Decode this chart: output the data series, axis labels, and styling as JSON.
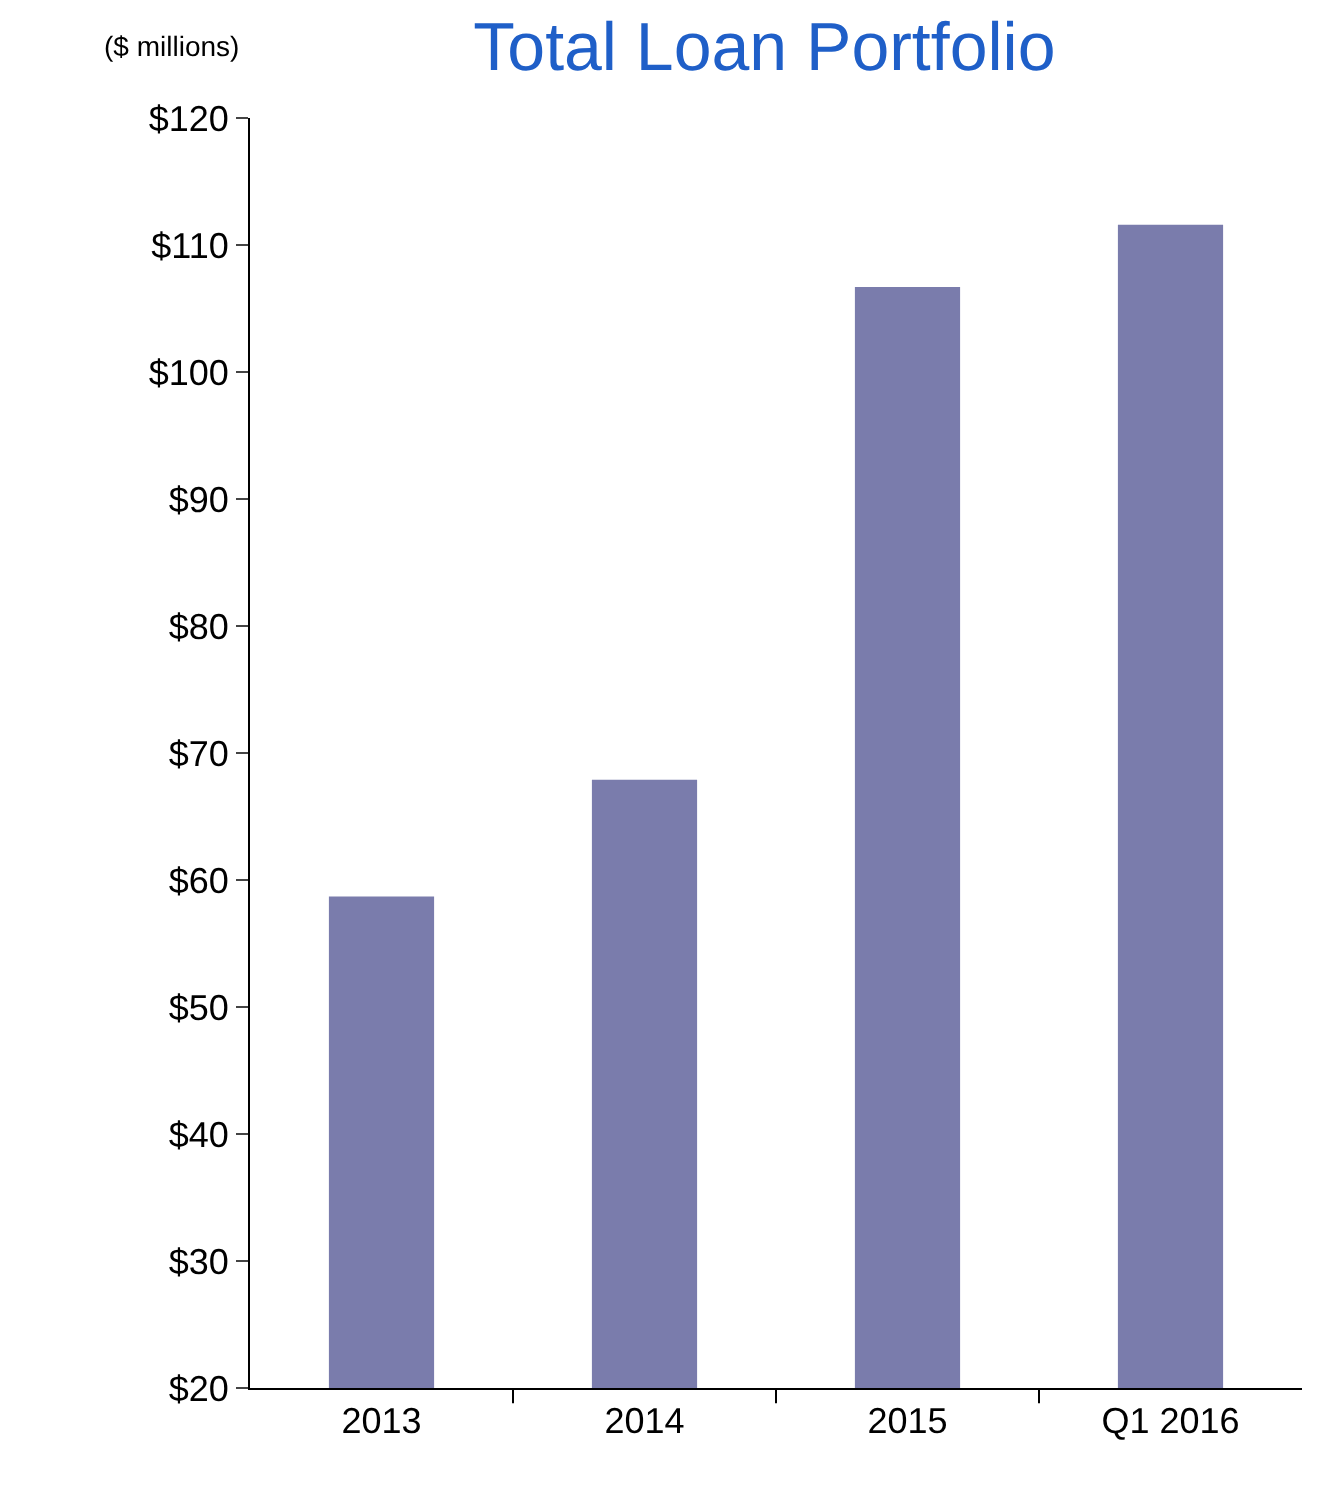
{
  "chart_data": {
    "type": "bar",
    "title": "Total Loan Portfolio",
    "ylabel": "($ millions)",
    "categories": [
      "2013",
      "2014",
      "2015",
      "Q1 2016"
    ],
    "values": [
      58.7,
      67.9,
      106.7,
      111.6
    ],
    "color": "#7a7cac",
    "ylim": [
      20,
      120
    ],
    "yticks": [
      {
        "value": 20,
        "label": "$20"
      },
      {
        "value": 30,
        "label": "$30"
      },
      {
        "value": 40,
        "label": "$40"
      },
      {
        "value": 50,
        "label": "$50"
      },
      {
        "value": 60,
        "label": "$60"
      },
      {
        "value": 70,
        "label": "$70"
      },
      {
        "value": 80,
        "label": "$80"
      },
      {
        "value": 90,
        "label": "$90"
      },
      {
        "value": 100,
        "label": "$100"
      },
      {
        "value": 110,
        "label": "$110"
      },
      {
        "value": 120,
        "label": "$120"
      }
    ],
    "legend": false
  }
}
